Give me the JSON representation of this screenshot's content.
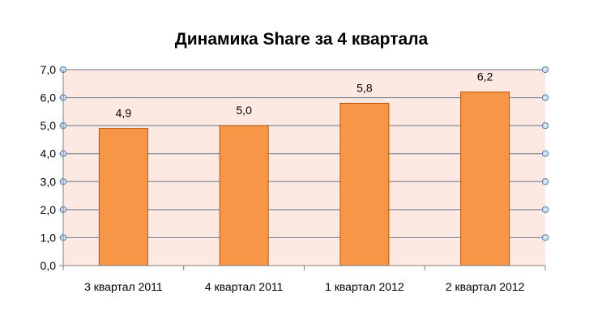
{
  "chart_data": {
    "type": "bar",
    "title": "Динамика Share за 4 квартала",
    "categories": [
      "3 квартал  2011",
      "4 квартал  2011",
      "1 квартал  2012",
      "2 квартал  2012"
    ],
    "values": [
      4.9,
      5.0,
      5.8,
      6.2
    ],
    "data_labels": [
      "4,9",
      "5,0",
      "5,8",
      "6,2"
    ],
    "ylim": [
      0,
      7
    ],
    "y_ticks": [
      "0,0",
      "1,0",
      "2,0",
      "3,0",
      "4,0",
      "5,0",
      "6,0",
      "7,0"
    ],
    "grid": true,
    "legend": "none",
    "colors": {
      "bar_fill": "#f79646",
      "bar_stroke": "#b65708",
      "plot_background": "#fde9e1",
      "gridline": "#7f8c99",
      "marker_fill": "#d9e6f2",
      "marker_stroke": "#4f81bd"
    }
  }
}
